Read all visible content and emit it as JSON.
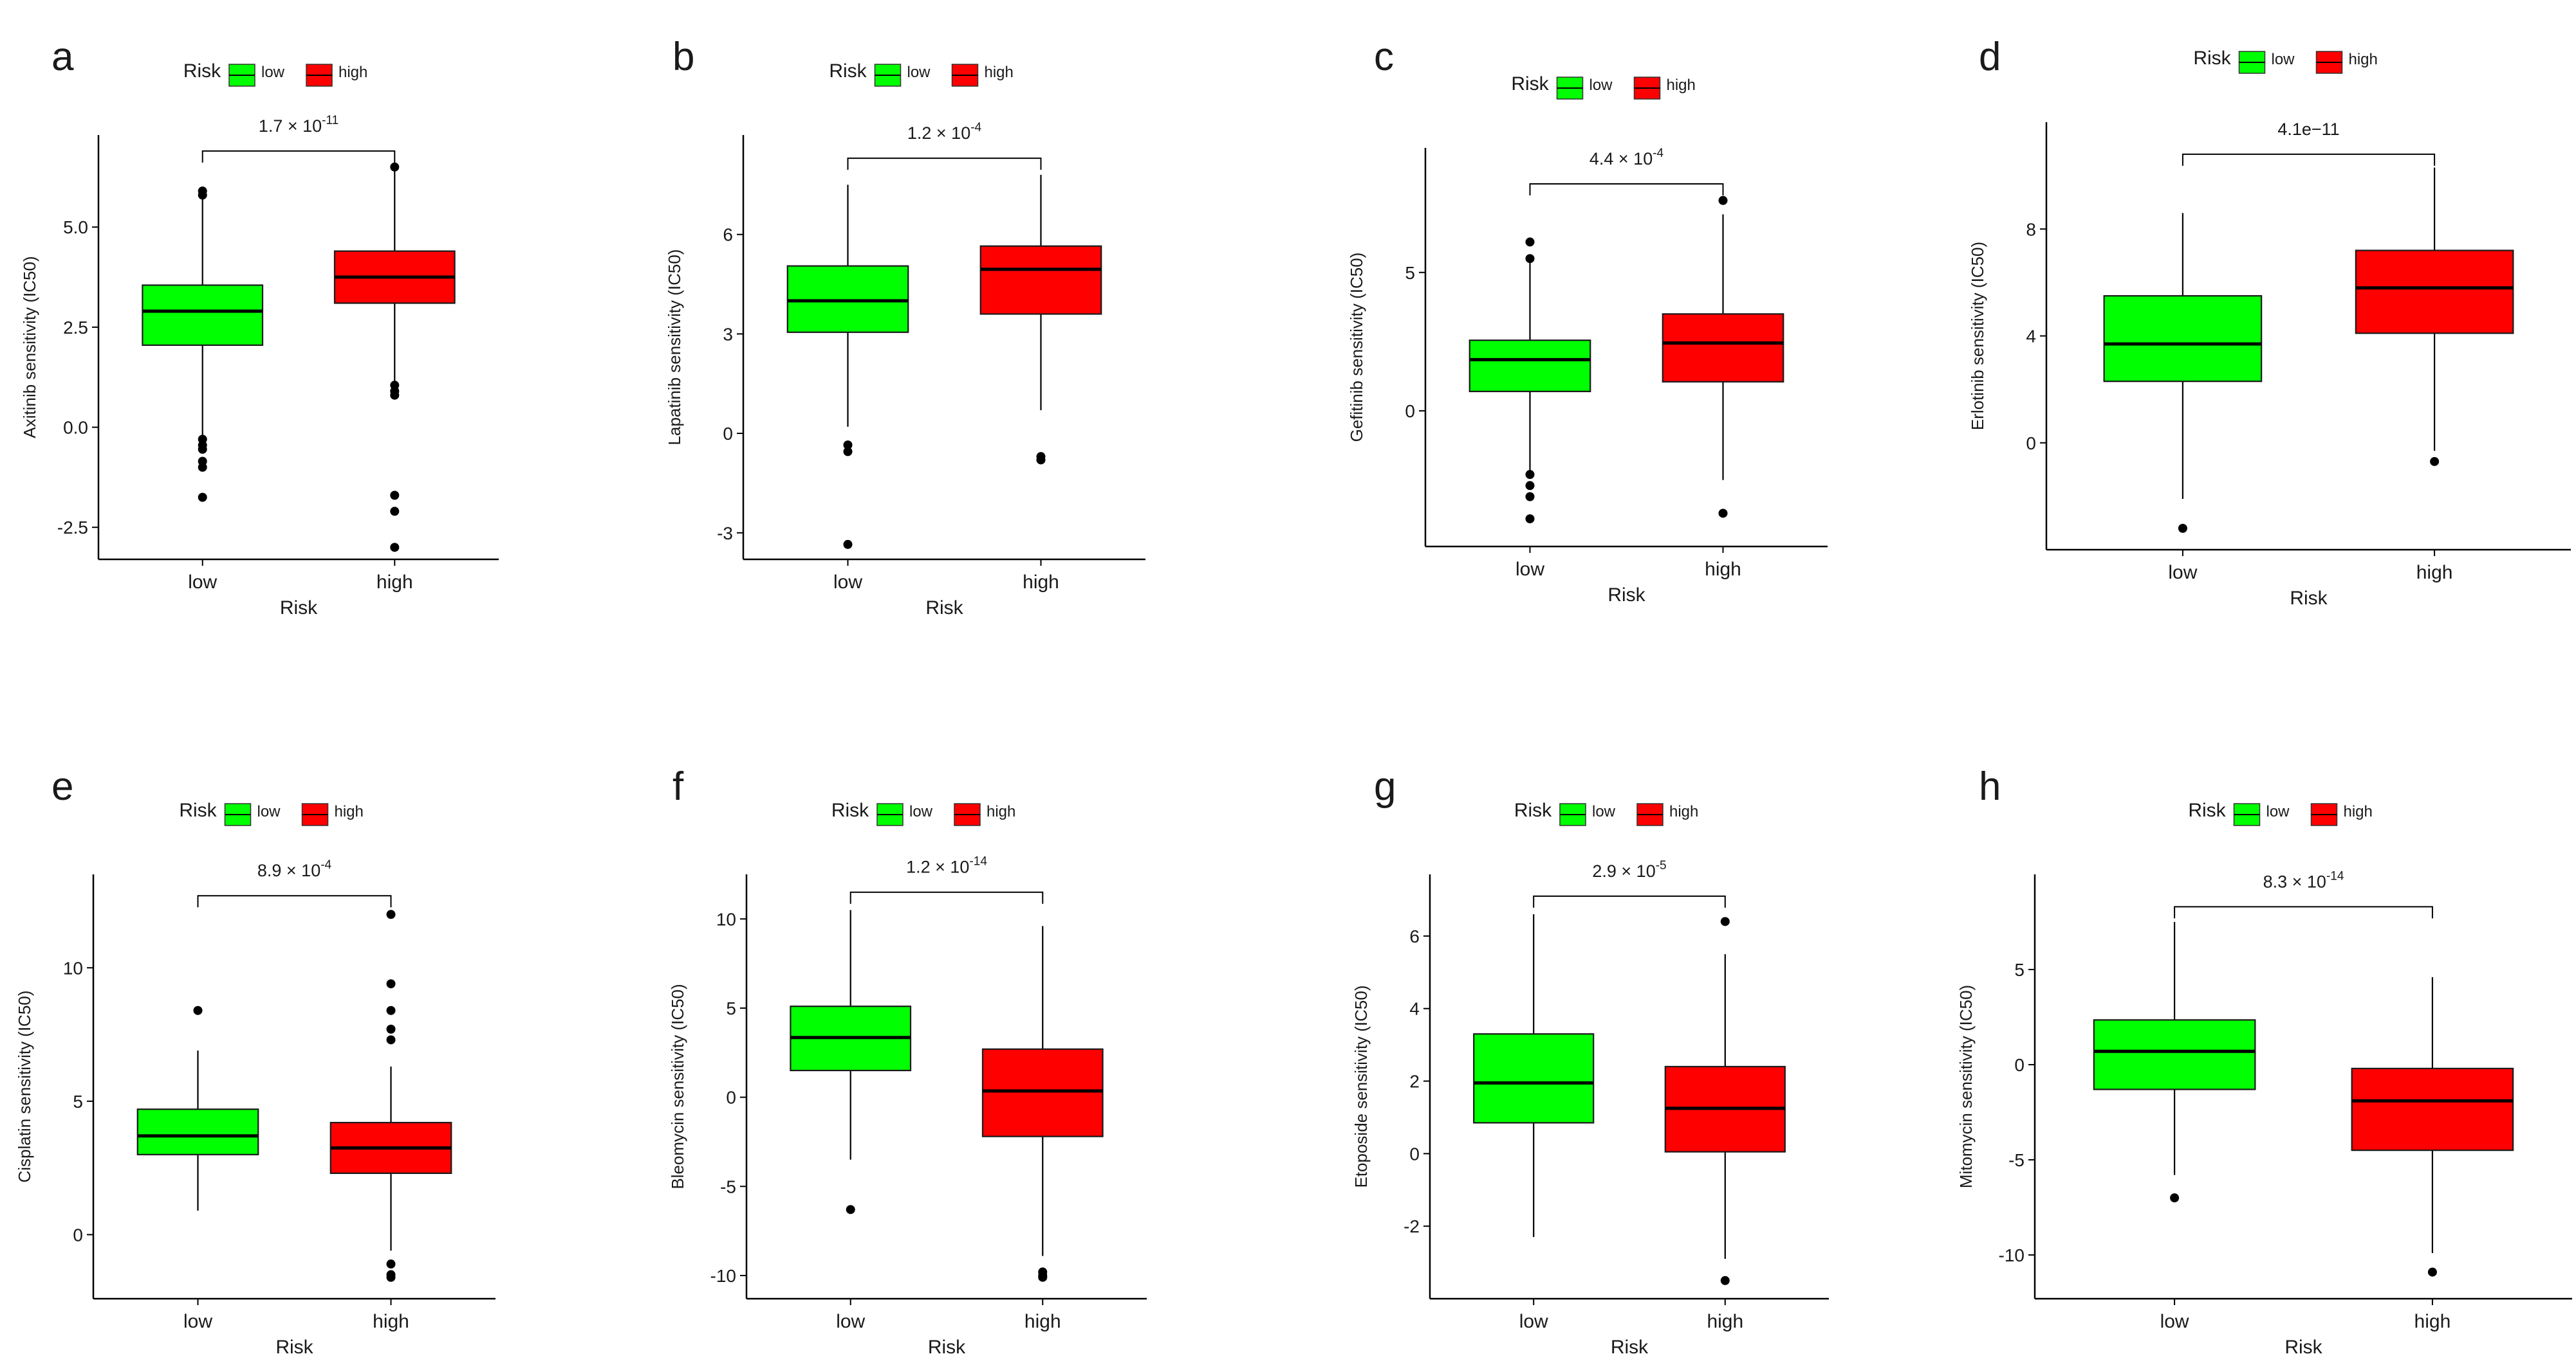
{
  "figure": {
    "legend_title": "Risk",
    "legend_low": "low",
    "legend_high": "high",
    "colors": {
      "low": "#00ff00",
      "high": "#ff0000",
      "axis": "#000000"
    }
  },
  "chart_data": [
    {
      "panel": "a",
      "type": "box",
      "title": "",
      "xlabel": "Risk",
      "ylabel": "Axitinib sensitivity (IC50)",
      "categories": [
        "low",
        "high"
      ],
      "p_label": {
        "base": "1.7 × 10",
        "exp": "-11"
      },
      "ylim": [
        -3.3,
        7.3
      ],
      "yticks": [
        -2.5,
        0,
        2.5,
        5
      ],
      "ytick_labels": [
        "-2.5",
        "0.0",
        "2.5",
        "5.0"
      ],
      "bracket_y": 6.9,
      "series": [
        {
          "name": "low",
          "q1": 2.05,
          "median": 2.9,
          "q3": 3.55,
          "whisker_low": -0.2,
          "whisker_high": 5.75,
          "outliers": [
            5.9,
            5.8,
            -0.3,
            -0.45,
            -0.55,
            -0.85,
            -1.0,
            -1.75
          ]
        },
        {
          "name": "high",
          "q1": 3.1,
          "median": 3.75,
          "q3": 4.4,
          "whisker_low": 1.15,
          "whisker_high": 6.4,
          "outliers": [
            6.5,
            1.05,
            0.9,
            0.8,
            -1.7,
            -2.1,
            -3.0
          ]
        }
      ]
    },
    {
      "panel": "b",
      "type": "box",
      "title": "",
      "xlabel": "Risk",
      "ylabel": "Lapatinib sensitivity (IC50)",
      "categories": [
        "low",
        "high"
      ],
      "p_label": {
        "base": "1.2 × 10",
        "exp": "-4"
      },
      "ylim": [
        -3.8,
        9.0
      ],
      "yticks": [
        -3,
        0,
        3,
        6
      ],
      "ytick_labels": [
        "-3",
        "0",
        "3",
        "6"
      ],
      "bracket_y": 8.3,
      "series": [
        {
          "name": "low",
          "q1": 3.05,
          "median": 4.0,
          "q3": 5.05,
          "whisker_low": 0.2,
          "whisker_high": 7.5,
          "outliers": [
            -0.35,
            -0.55,
            -3.35
          ]
        },
        {
          "name": "high",
          "q1": 3.6,
          "median": 4.95,
          "q3": 5.65,
          "whisker_low": 0.7,
          "whisker_high": 7.8,
          "outliers": [
            -0.7,
            -0.8
          ]
        }
      ]
    },
    {
      "panel": "c",
      "type": "box",
      "title": "",
      "xlabel": "Risk",
      "ylabel": "Gefitinib sensitivity (IC50)",
      "categories": [
        "low",
        "high"
      ],
      "p_label": {
        "base": "4.4 × 10",
        "exp": "-4"
      },
      "ylim": [
        -4.9,
        9.5
      ],
      "yticks": [
        0,
        5
      ],
      "ytick_labels": [
        "0",
        "5"
      ],
      "bracket_y": 8.2,
      "series": [
        {
          "name": "low",
          "q1": 0.7,
          "median": 1.85,
          "q3": 2.55,
          "whisker_low": -2.2,
          "whisker_high": 5.5,
          "outliers": [
            6.1,
            5.5,
            -2.3,
            -2.7,
            -3.1,
            -3.9
          ]
        },
        {
          "name": "high",
          "q1": 1.05,
          "median": 2.45,
          "q3": 3.5,
          "whisker_low": -2.5,
          "whisker_high": 7.1,
          "outliers": [
            7.6,
            -3.7
          ]
        }
      ]
    },
    {
      "panel": "d",
      "type": "box",
      "title": "",
      "xlabel": "Risk",
      "ylabel": "Erlotinib sensitivity (IC50)",
      "categories": [
        "low",
        "high"
      ],
      "p_label": {
        "base": "4.1e−11",
        "exp": ""
      },
      "ylim": [
        -4.0,
        12.0
      ],
      "yticks": [
        0,
        4,
        8
      ],
      "ytick_labels": [
        "0",
        "4",
        "8"
      ],
      "bracket_y": 10.8,
      "series": [
        {
          "name": "low",
          "q1": 2.3,
          "median": 3.7,
          "q3": 5.5,
          "whisker_low": -2.1,
          "whisker_high": 8.6,
          "outliers": [
            -3.2
          ]
        },
        {
          "name": "high",
          "q1": 4.1,
          "median": 5.8,
          "q3": 7.2,
          "whisker_low": -0.3,
          "whisker_high": 10.3,
          "outliers": [
            -0.7
          ]
        }
      ]
    },
    {
      "panel": "e",
      "type": "box",
      "title": "",
      "xlabel": "Risk",
      "ylabel": "Cisplatin sensitivity (IC50)",
      "categories": [
        "low",
        "high"
      ],
      "p_label": {
        "base": "8.9 × 10",
        "exp": "-4"
      },
      "ylim": [
        -2.4,
        13.5
      ],
      "yticks": [
        0,
        5,
        10
      ],
      "ytick_labels": [
        "0",
        "5",
        "10"
      ],
      "bracket_y": 12.7,
      "series": [
        {
          "name": "low",
          "q1": 3.0,
          "median": 3.7,
          "q3": 4.7,
          "whisker_low": 0.9,
          "whisker_high": 6.9,
          "outliers": [
            8.4
          ]
        },
        {
          "name": "high",
          "q1": 2.3,
          "median": 3.25,
          "q3": 4.2,
          "whisker_low": -0.6,
          "whisker_high": 6.3,
          "outliers": [
            12.0,
            9.4,
            8.4,
            7.7,
            7.3,
            -1.1,
            -1.5,
            -1.6
          ]
        }
      ]
    },
    {
      "panel": "f",
      "type": "box",
      "title": "",
      "xlabel": "Risk",
      "ylabel": "Bleomycin sensitivity (IC50)",
      "categories": [
        "low",
        "high"
      ],
      "p_label": {
        "base": "1.2 × 10",
        "exp": "-14"
      },
      "ylim": [
        -11.3,
        12.5
      ],
      "yticks": [
        -10,
        -5,
        0,
        5,
        10
      ],
      "ytick_labels": [
        "-10",
        "-5",
        "0",
        "5",
        "10"
      ],
      "bracket_y": 11.5,
      "series": [
        {
          "name": "low",
          "q1": 1.5,
          "median": 3.35,
          "q3": 5.1,
          "whisker_low": -3.5,
          "whisker_high": 10.5,
          "outliers": [
            -6.3
          ]
        },
        {
          "name": "high",
          "q1": -2.2,
          "median": 0.35,
          "q3": 2.7,
          "whisker_low": -8.9,
          "whisker_high": 9.6,
          "outliers": [
            -9.8,
            -10.0,
            -10.1
          ]
        }
      ]
    },
    {
      "panel": "g",
      "type": "box",
      "title": "",
      "xlabel": "Risk",
      "ylabel": "Etoposide sensitivity (IC50)",
      "categories": [
        "low",
        "high"
      ],
      "p_label": {
        "base": "2.9 × 10",
        "exp": "-5"
      },
      "ylim": [
        -4.0,
        7.7
      ],
      "yticks": [
        -2,
        0,
        2,
        4,
        6
      ],
      "ytick_labels": [
        "-2",
        "0",
        "2",
        "4",
        "6"
      ],
      "bracket_y": 7.1,
      "series": [
        {
          "name": "low",
          "q1": 0.85,
          "median": 1.95,
          "q3": 3.3,
          "whisker_low": -2.3,
          "whisker_high": 6.6,
          "outliers": []
        },
        {
          "name": "high",
          "q1": 0.05,
          "median": 1.25,
          "q3": 2.4,
          "whisker_low": -2.9,
          "whisker_high": 5.5,
          "outliers": [
            6.4,
            -3.5
          ]
        }
      ]
    },
    {
      "panel": "h",
      "type": "box",
      "title": "",
      "xlabel": "Risk",
      "ylabel": "Mitomycin sensitivity (IC50)",
      "categories": [
        "low",
        "high"
      ],
      "p_label": {
        "base": "8.3 × 10",
        "exp": "-14"
      },
      "ylim": [
        -12.3,
        10.0
      ],
      "yticks": [
        -10,
        -5,
        0,
        5
      ],
      "ytick_labels": [
        "-10",
        "-5",
        "0",
        "5"
      ],
      "bracket_y": 8.3,
      "series": [
        {
          "name": "low",
          "q1": -1.3,
          "median": 0.7,
          "q3": 2.35,
          "whisker_low": -5.8,
          "whisker_high": 7.5,
          "outliers": [
            -7.0
          ]
        },
        {
          "name": "high",
          "q1": -4.5,
          "median": -1.9,
          "q3": -0.2,
          "whisker_low": -9.9,
          "whisker_high": 4.6,
          "outliers": [
            -10.9
          ]
        }
      ]
    }
  ]
}
